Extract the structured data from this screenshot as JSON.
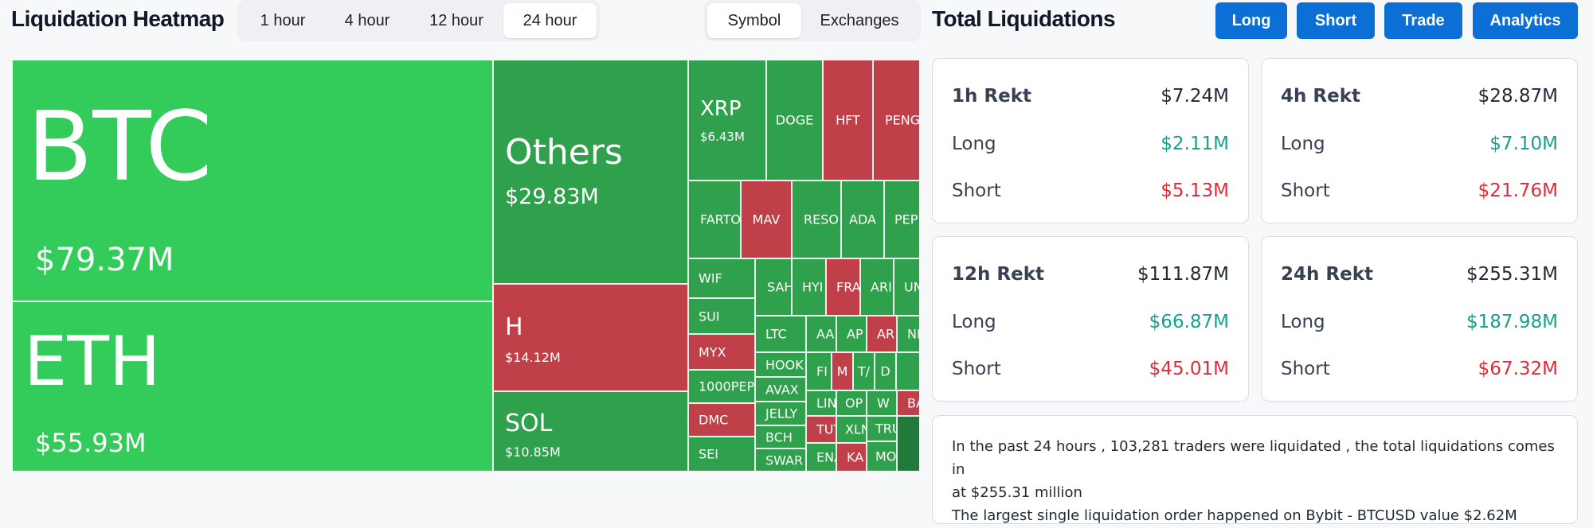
{
  "header": {
    "title": "Liquidation Heatmap",
    "timeframes": [
      "1 hour",
      "4 hour",
      "12 hour",
      "24 hour"
    ],
    "active_timeframe": "24 hour",
    "group_by": [
      "Symbol",
      "Exchanges"
    ],
    "active_group": "Symbol"
  },
  "right_header": {
    "title": "Total Liquidations",
    "buttons": [
      "Long",
      "Short",
      "Trade",
      "Analytics"
    ],
    "accent_color": "#0b6fd6"
  },
  "heatmap": {
    "colors": {
      "long_dominant": "#33cc5a",
      "mixed_green": "#2fa04b",
      "short_dominant": "#c0404a"
    },
    "tiles": [
      {
        "symbol": "BTC",
        "value": "$79.37M"
      },
      {
        "symbol": "ETH",
        "value": "$55.93M"
      },
      {
        "symbol": "Others",
        "value": "$29.83M"
      },
      {
        "symbol": "H",
        "value": "$14.12M"
      },
      {
        "symbol": "SOL",
        "value": "$10.85M"
      },
      {
        "symbol": "XRP",
        "value": "$6.43M"
      },
      {
        "symbol": "DOGE"
      },
      {
        "symbol": "HFT"
      },
      {
        "symbol": "PENG"
      },
      {
        "symbol": "FARTO"
      },
      {
        "symbol": "MAV"
      },
      {
        "symbol": "RESO"
      },
      {
        "symbol": "ADA"
      },
      {
        "symbol": "PEP"
      },
      {
        "symbol": "WIF"
      },
      {
        "symbol": "SUI"
      },
      {
        "symbol": "MYX"
      },
      {
        "symbol": "1000PEP"
      },
      {
        "symbol": "DMC"
      },
      {
        "symbol": "SEI"
      },
      {
        "symbol": "SAH"
      },
      {
        "symbol": "HYI"
      },
      {
        "symbol": "FRA"
      },
      {
        "symbol": "ARI"
      },
      {
        "symbol": "UN"
      },
      {
        "symbol": "LTC"
      },
      {
        "symbol": "AA"
      },
      {
        "symbol": "AP"
      },
      {
        "symbol": "AR"
      },
      {
        "symbol": "NE"
      },
      {
        "symbol": "HOOK"
      },
      {
        "symbol": "AVAX"
      },
      {
        "symbol": "JELLY"
      },
      {
        "symbol": "BCH"
      },
      {
        "symbol": "SWAR"
      },
      {
        "symbol": "FI"
      },
      {
        "symbol": "M"
      },
      {
        "symbol": "T/"
      },
      {
        "symbol": "D"
      },
      {
        "symbol": "LIN"
      },
      {
        "symbol": "OP"
      },
      {
        "symbol": "W"
      },
      {
        "symbol": "BA"
      },
      {
        "symbol": "TUT"
      },
      {
        "symbol": "XLN"
      },
      {
        "symbol": "TRU"
      },
      {
        "symbol": "ENA"
      },
      {
        "symbol": "KA"
      },
      {
        "symbol": "MO"
      }
    ]
  },
  "stats": [
    {
      "period": "1h Rekt",
      "total": "$7.24M",
      "long_label": "Long",
      "long": "$2.11M",
      "short_label": "Short",
      "short": "$5.13M"
    },
    {
      "period": "4h Rekt",
      "total": "$28.87M",
      "long_label": "Long",
      "long": "$7.10M",
      "short_label": "Short",
      "short": "$21.76M"
    },
    {
      "period": "12h Rekt",
      "total": "$111.87M",
      "long_label": "Long",
      "long": "$66.87M",
      "short_label": "Short",
      "short": "$45.01M"
    },
    {
      "period": "24h Rekt",
      "total": "$255.31M",
      "long_label": "Long",
      "long": "$187.98M",
      "short_label": "Short",
      "short": "$67.32M"
    }
  ],
  "summary": {
    "line1": "In the past 24 hours , 103,281 traders were liquidated , the total liquidations comes in",
    "line2": "at $255.31 million",
    "line3": "The largest single liquidation order happened on Bybit - BTCUSD value $2.62M"
  },
  "status_colors": {
    "long": "#16a18a",
    "short": "#e02a3c"
  }
}
